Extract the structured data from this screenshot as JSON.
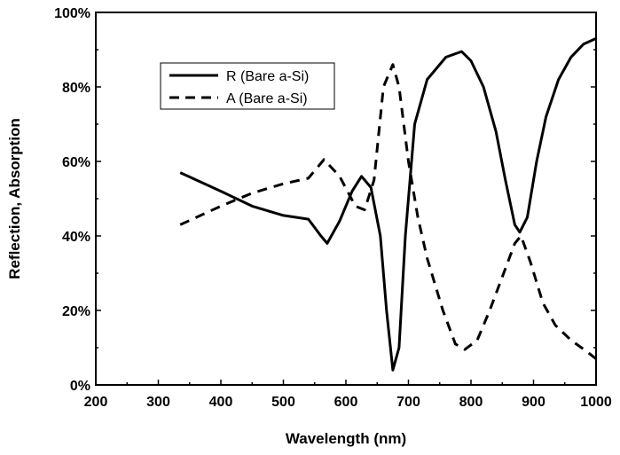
{
  "chart_data": {
    "type": "line",
    "title": "",
    "xlabel": "Wavelength (nm)",
    "ylabel": "Reflection, Absorption",
    "xlim": [
      200,
      1000
    ],
    "ylim": [
      0,
      100
    ],
    "xticks": [
      200,
      300,
      400,
      500,
      600,
      700,
      800,
      900,
      1000
    ],
    "yticks": [
      0,
      20,
      40,
      60,
      80,
      100
    ],
    "ytick_labels": [
      "0%",
      "20%",
      "40%",
      "60%",
      "80%",
      "100%"
    ],
    "grid": false,
    "legend_placement": "top-left",
    "series": [
      {
        "name": "R (Bare a-Si)",
        "style": "solid",
        "color": "#000000",
        "x": [
          335,
          400,
          450,
          500,
          540,
          560,
          570,
          590,
          610,
          625,
          640,
          655,
          665,
          675,
          685,
          695,
          710,
          730,
          760,
          785,
          800,
          820,
          840,
          855,
          870,
          878,
          890,
          905,
          920,
          940,
          960,
          980,
          1000
        ],
        "y": [
          57,
          52,
          48,
          45.5,
          44.5,
          40,
          38,
          44,
          52,
          56,
          53,
          40,
          20,
          4,
          10,
          40,
          70,
          82,
          88,
          89.5,
          87,
          80,
          68,
          55,
          43,
          41,
          45,
          60,
          72,
          82,
          88,
          91.5,
          93
        ]
      },
      {
        "name": "A (Bare a-Si)",
        "style": "dashed",
        "color": "#000000",
        "x": [
          335,
          400,
          450,
          500,
          540,
          565,
          590,
          615,
          630,
          645,
          660,
          675,
          685,
          700,
          715,
          730,
          755,
          775,
          790,
          810,
          830,
          850,
          870,
          880,
          895,
          915,
          935,
          960,
          985,
          1000
        ],
        "y": [
          43,
          48,
          51.5,
          54,
          55.5,
          60.5,
          56,
          48,
          47,
          55,
          80,
          86,
          80,
          60,
          45,
          34,
          20,
          11,
          9.5,
          12,
          20,
          29,
          38,
          40,
          33,
          22,
          16,
          12,
          9,
          7
        ]
      }
    ]
  }
}
